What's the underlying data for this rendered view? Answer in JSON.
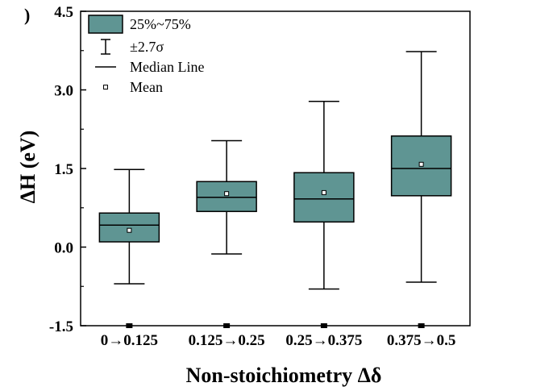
{
  "panel_label": ")",
  "chart_data": {
    "type": "box",
    "xlabel": "Non-stoichiometry Δδ",
    "ylabel": "ΔH (eV)",
    "ylim": [
      -1.5,
      4.5
    ],
    "yticks": [
      -1.5,
      0.0,
      1.5,
      3.0,
      4.5
    ],
    "ytick_labels": [
      "-1.5",
      "0.0",
      "1.5",
      "3.0",
      "4.5"
    ],
    "categories": [
      "0→0.125",
      "0.125→0.25",
      "0.25→0.375",
      "0.375→0.5"
    ],
    "boxes": [
      {
        "whisker_low": -0.7,
        "q1": 0.1,
        "median": 0.42,
        "q3": 0.65,
        "whisker_high": 1.48,
        "mean": 0.32
      },
      {
        "whisker_low": -0.13,
        "q1": 0.68,
        "median": 0.95,
        "q3": 1.25,
        "whisker_high": 2.03,
        "mean": 1.02
      },
      {
        "whisker_low": -0.8,
        "q1": 0.48,
        "median": 0.92,
        "q3": 1.42,
        "whisker_high": 2.78,
        "mean": 1.04
      },
      {
        "whisker_low": -0.67,
        "q1": 0.98,
        "median": 1.5,
        "q3": 2.12,
        "whisker_high": 3.73,
        "mean": 1.58
      }
    ],
    "box_color": "#5f9593",
    "legend": {
      "placement": "top-left",
      "items": [
        {
          "kind": "box",
          "label": "25%~75%"
        },
        {
          "kind": "whisker",
          "label": "±2.7σ"
        },
        {
          "kind": "median",
          "label": "Median Line"
        },
        {
          "kind": "mean",
          "label": "Mean"
        }
      ]
    },
    "grid": false
  }
}
